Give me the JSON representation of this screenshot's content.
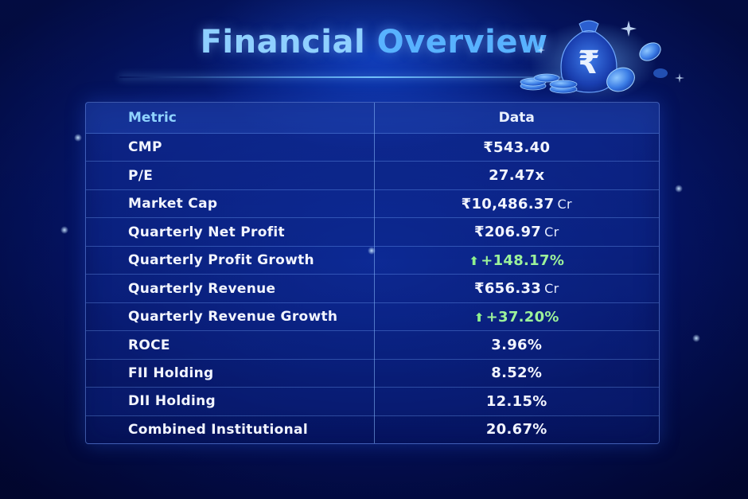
{
  "header": {
    "title_part1": "Financial",
    "title_part2": "Overview"
  },
  "icons": {
    "currency_symbol": "₹"
  },
  "table": {
    "columns": [
      "Metric",
      "Data"
    ],
    "rows": [
      {
        "metric": "CMP",
        "value": "₹543.40",
        "unit": ""
      },
      {
        "metric": "P/E",
        "value": "27.47x",
        "unit": ""
      },
      {
        "metric": "Market Cap",
        "value": "₹10,486.37",
        "unit": "Cr"
      },
      {
        "metric": "Quarterly Net Profit",
        "value": "₹206.97",
        "unit": "Cr"
      },
      {
        "metric": "Quarterly Profit Growth",
        "value": "+148.17%",
        "unit": "",
        "trend": "up"
      },
      {
        "metric": "Quarterly Revenue",
        "value": "₹656.33",
        "unit": "Cr"
      },
      {
        "metric": "Quarterly Revenue Growth",
        "value": "+37.20%",
        "unit": "",
        "trend": "up"
      },
      {
        "metric": "ROCE",
        "value": "3.96%",
        "unit": ""
      },
      {
        "metric": "FII Holding",
        "value": "8.52%",
        "unit": ""
      },
      {
        "metric": "DII Holding",
        "value": "12.15%",
        "unit": ""
      },
      {
        "metric": "Combined Institutional",
        "value": "20.67%",
        "unit": ""
      }
    ]
  },
  "colors": {
    "background": "#041466",
    "title_light": "#8fd0ff",
    "title_accent": "#58b2ff",
    "positive": "#9cf29a"
  }
}
